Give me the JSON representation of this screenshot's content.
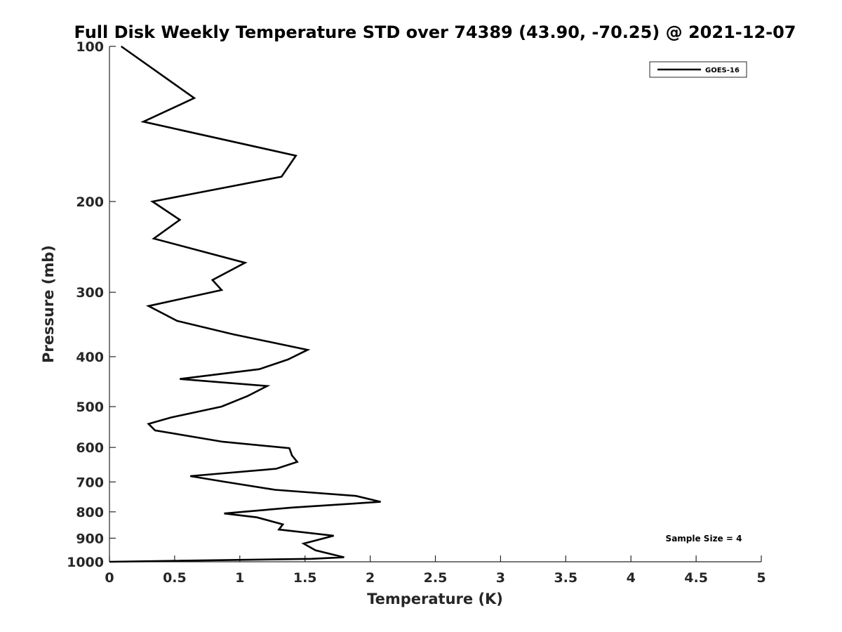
{
  "chart_data": {
    "type": "line",
    "title": "Full Disk Weekly Temperature STD over 74389 (43.90, -70.25) @ 2021-12-07",
    "xlabel": "Temperature (K)",
    "ylabel": "Pressure (mb)",
    "xlim": [
      0,
      5
    ],
    "ylim": [
      1000,
      100
    ],
    "y_scale": "log",
    "y_reversed": true,
    "grid": false,
    "legend_position": "top-right",
    "x_ticks": [
      "0",
      "0.5",
      "1",
      "1.5",
      "2",
      "2.5",
      "3",
      "3.5",
      "4",
      "4.5",
      "5"
    ],
    "y_ticks": [
      "100",
      "200",
      "300",
      "400",
      "500",
      "600",
      "700",
      "800",
      "900",
      "1000"
    ],
    "annotation": "Sample Size = 4",
    "series": [
      {
        "name": "GOES-16",
        "color": "#000000",
        "points": [
          [
            0.09,
            100
          ],
          [
            0.65,
            126
          ],
          [
            0.26,
            140
          ],
          [
            1.43,
            163
          ],
          [
            1.32,
            179
          ],
          [
            0.33,
            200
          ],
          [
            0.54,
            217
          ],
          [
            0.34,
            236
          ],
          [
            1.04,
            263
          ],
          [
            0.79,
            284
          ],
          [
            0.86,
            297
          ],
          [
            0.3,
            319
          ],
          [
            0.52,
            341
          ],
          [
            0.95,
            362
          ],
          [
            1.52,
            388
          ],
          [
            1.37,
            405
          ],
          [
            1.15,
            423
          ],
          [
            0.54,
            442
          ],
          [
            1.21,
            456
          ],
          [
            1.06,
            477
          ],
          [
            0.86,
            500
          ],
          [
            0.47,
            525
          ],
          [
            0.3,
            540
          ],
          [
            0.35,
            556
          ],
          [
            0.87,
            585
          ],
          [
            1.38,
            602
          ],
          [
            1.4,
            622
          ],
          [
            1.44,
            640
          ],
          [
            1.28,
            660
          ],
          [
            0.62,
            682
          ],
          [
            0.86,
            698
          ],
          [
            1.27,
            725
          ],
          [
            1.89,
            745
          ],
          [
            2.08,
            765
          ],
          [
            1.4,
            785
          ],
          [
            0.88,
            806
          ],
          [
            1.13,
            820
          ],
          [
            1.33,
            846
          ],
          [
            1.3,
            866
          ],
          [
            1.72,
            890
          ],
          [
            1.49,
            922
          ],
          [
            1.58,
            950
          ],
          [
            1.8,
            980
          ],
          [
            1.55,
            987
          ],
          [
            0.0,
            1000
          ]
        ]
      }
    ]
  }
}
